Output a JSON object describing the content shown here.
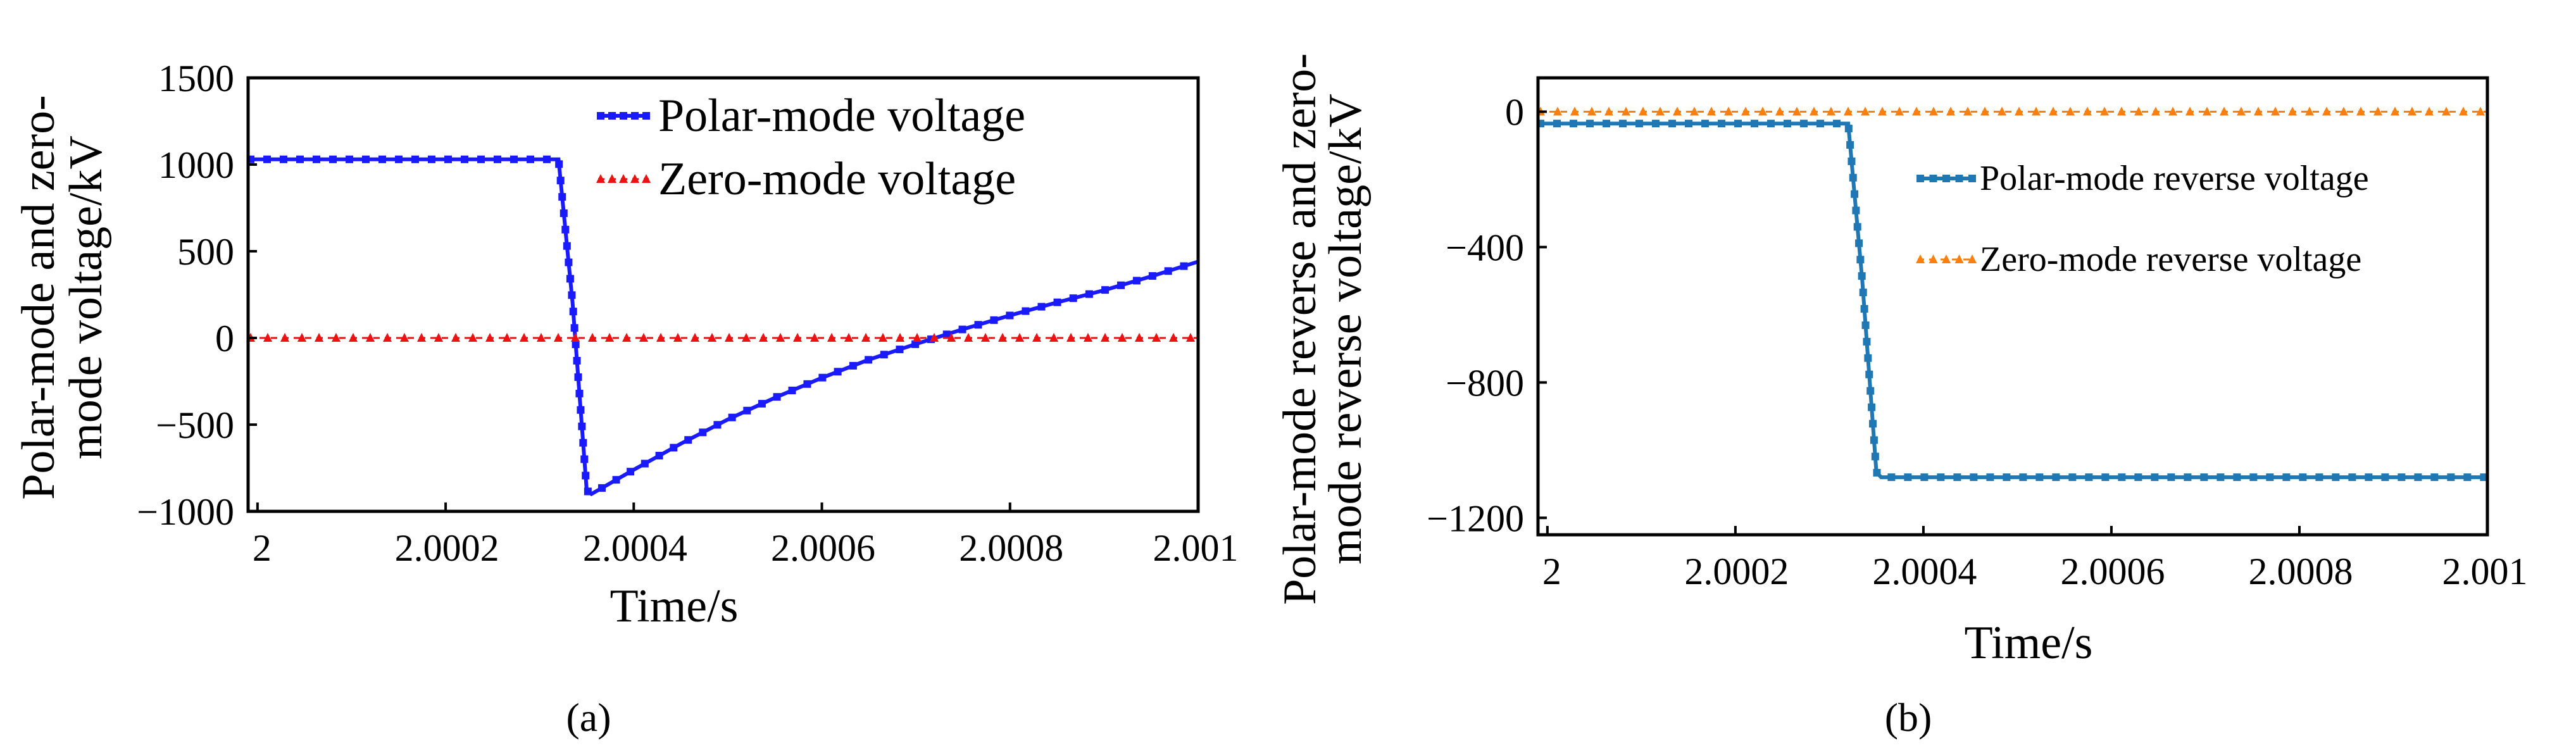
{
  "figure": {
    "panel_a_caption": "(a)",
    "panel_b_caption": "(b)"
  },
  "chart_data": [
    {
      "panel": "a",
      "type": "line",
      "title": "",
      "xlabel": "Time/s",
      "ylabel": [
        "Polar-mode  and zero-",
        "mode voltage/kV"
      ],
      "xlim": [
        1.99999,
        2.001
      ],
      "ylim": [
        -1000,
        1500
      ],
      "x_ticks": [
        2,
        2.0002,
        2.0004,
        2.0006,
        2.0008,
        2.001
      ],
      "x_tick_labels": [
        "2",
        "2.0002",
        "2.0004",
        "2.0006",
        "2.0008",
        "2.001"
      ],
      "y_ticks": [
        1500,
        1000,
        500,
        0,
        -500,
        -1000
      ],
      "y_tick_labels": [
        "1500",
        "1000",
        "500",
        "0",
        "−500",
        "−1000"
      ],
      "legend_position": "top-right",
      "series": [
        {
          "name": "Polar-mode voltage",
          "color": "#1a1aff",
          "marker": "square",
          "x": [
            1.99999,
            2.0001,
            2.00025,
            2.00032,
            2.000335,
            2.00035,
            2.000355,
            2.0004,
            2.00045,
            2.0005,
            2.00055,
            2.0006,
            2.00065,
            2.0007,
            2.00075,
            2.0008,
            2.00085,
            2.0009,
            2.00095,
            2.001
          ],
          "y": [
            1030,
            1030,
            1030,
            1030,
            200,
            -880,
            -900,
            -760,
            -610,
            -470,
            -345,
            -230,
            -125,
            -35,
            50,
            130,
            205,
            275,
            355,
            440
          ]
        },
        {
          "name": "Zero-mode voltage",
          "color": "#ee1111",
          "marker": "triangle",
          "x": [
            1.99999,
            2.001
          ],
          "y": [
            0,
            0
          ]
        }
      ]
    },
    {
      "panel": "b",
      "type": "line",
      "title": "",
      "xlabel": "Time/s",
      "ylabel": [
        "Polar-mode reverse and zero-",
        "mode reverse voltage/kV"
      ],
      "xlim": [
        1.99999,
        2.001
      ],
      "ylim": [
        -1250,
        100
      ],
      "x_ticks": [
        2,
        2.0002,
        2.0004,
        2.0006,
        2.0008,
        2.001
      ],
      "x_tick_labels": [
        "2",
        "2.0002",
        "2.0004",
        "2.0006",
        "2.0008",
        "2.001"
      ],
      "y_ticks": [
        0,
        -400,
        -800,
        -1200
      ],
      "y_tick_labels": [
        "0",
        "−400",
        "−800",
        "−1200"
      ],
      "legend_position": "top-right",
      "series": [
        {
          "name": "Polar-mode reverse voltage",
          "color": "#1f77b4",
          "marker": "square",
          "x": [
            1.99999,
            2.00032,
            2.000335,
            2.00035,
            2.000355,
            2.001
          ],
          "y": [
            -35,
            -35,
            -500,
            -1065,
            -1080,
            -1080
          ]
        },
        {
          "name": "Zero-mode reverse voltage",
          "color": "#ff7f0e",
          "marker": "triangle",
          "x": [
            1.99999,
            2.001
          ],
          "y": [
            0,
            0
          ]
        }
      ]
    }
  ]
}
